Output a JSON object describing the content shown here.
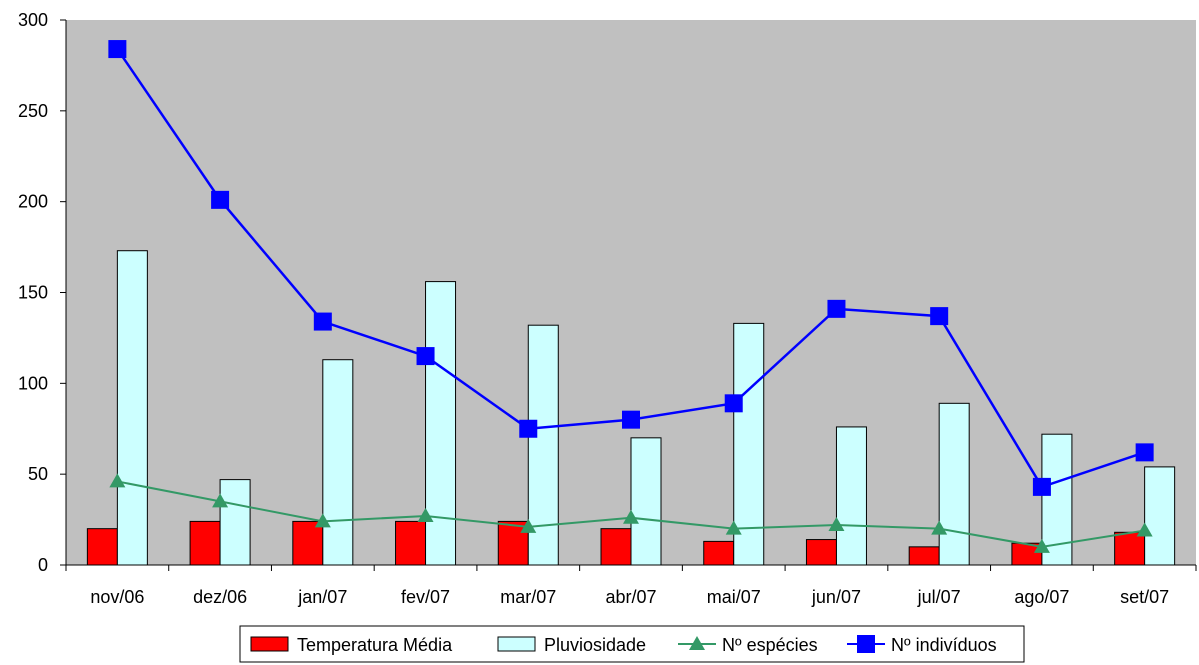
{
  "chart_data": {
    "type": "bar",
    "categories": [
      "nov/06",
      "dez/06",
      "jan/07",
      "fev/07",
      "mar/07",
      "abr/07",
      "mai/07",
      "jun/07",
      "jul/07",
      "ago/07",
      "set/07"
    ],
    "ylim": [
      0,
      300
    ],
    "yticks": [
      0,
      50,
      100,
      150,
      200,
      250,
      300
    ],
    "grid": false,
    "legend_position": "bottom",
    "series": [
      {
        "name": "Temperatura Média",
        "type": "bar",
        "color": "#ff0000",
        "values": [
          20,
          24,
          24,
          24,
          24,
          20,
          13,
          14,
          10,
          12,
          18
        ]
      },
      {
        "name": "Pluviosidade",
        "type": "bar",
        "color": "#ccffff",
        "values": [
          173,
          47,
          113,
          156,
          132,
          70,
          133,
          76,
          89,
          72,
          54
        ]
      },
      {
        "name": "Nº espécies",
        "type": "line",
        "marker": "triangle",
        "color": "#339966",
        "values": [
          46,
          35,
          24,
          27,
          21,
          26,
          20,
          22,
          20,
          10,
          19
        ]
      },
      {
        "name": "Nº indivíduos",
        "type": "line",
        "marker": "square",
        "color": "#0000ff",
        "values": [
          284,
          201,
          134,
          115,
          75,
          80,
          89,
          141,
          137,
          43,
          62
        ]
      }
    ]
  }
}
